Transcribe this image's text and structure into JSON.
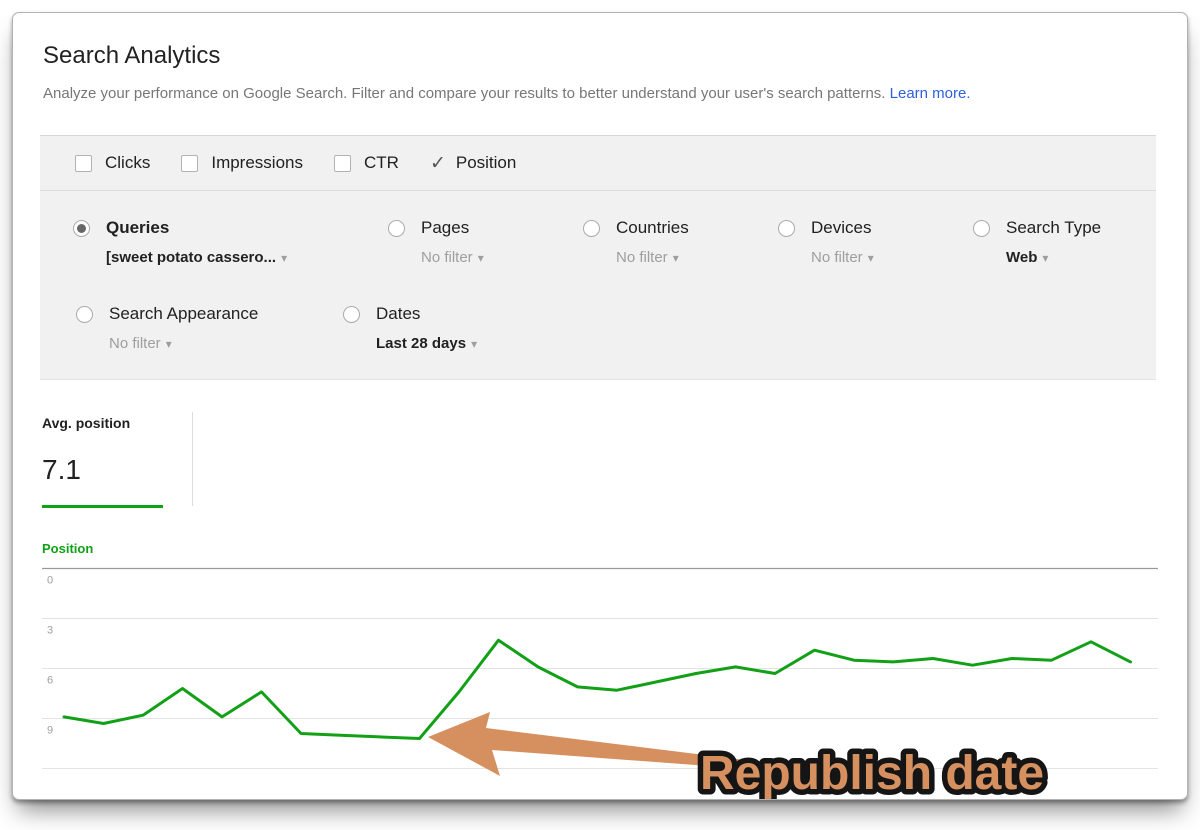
{
  "header": {
    "title": "Search Analytics",
    "subtitle": "Analyze your performance on Google Search. Filter and compare your results to better understand your user's search patterns.",
    "learn_more": "Learn more."
  },
  "metrics_bar": {
    "check_glyph": "✓",
    "items": [
      {
        "label": "Clicks",
        "checked": false
      },
      {
        "label": "Impressions",
        "checked": false
      },
      {
        "label": "CTR",
        "checked": false
      },
      {
        "label": "Position",
        "checked": true
      }
    ]
  },
  "dimensions": {
    "caret_glyph": "▾",
    "row1": [
      {
        "label": "Queries",
        "selected": true,
        "filter": "[sweet potato cassero...",
        "filter_bold": true
      },
      {
        "label": "Pages",
        "selected": false,
        "filter": "No filter",
        "filter_bold": false
      },
      {
        "label": "Countries",
        "selected": false,
        "filter": "No filter",
        "filter_bold": false
      },
      {
        "label": "Devices",
        "selected": false,
        "filter": "No filter",
        "filter_bold": false
      },
      {
        "label": "Search Type",
        "selected": false,
        "filter": "Web",
        "filter_bold": true
      }
    ],
    "row2": [
      {
        "label": "Search Appearance",
        "selected": false,
        "filter": "No filter",
        "filter_bold": false
      },
      {
        "label": "Dates",
        "selected": false,
        "filter": "Last 28 days",
        "filter_bold": true
      }
    ]
  },
  "summary": {
    "label": "Avg. position",
    "value": "7.1"
  },
  "chart_data": {
    "type": "line",
    "title": "Position",
    "ylabel": "Position",
    "y_axis_inverted": true,
    "ylim": [
      0,
      12
    ],
    "yticks_labeled": [
      0,
      3,
      6,
      9
    ],
    "gridlines": [
      0,
      3,
      6,
      9,
      12
    ],
    "x_description": "Last 28 days (daily points)",
    "legend_position": "none",
    "grid": true,
    "line_color": "#12a016",
    "series": [
      {
        "name": "Position",
        "values": [
          8.9,
          9.3,
          8.8,
          7.2,
          8.9,
          7.4,
          9.9,
          10.0,
          10.1,
          10.2,
          7.4,
          4.3,
          5.9,
          7.1,
          7.3,
          6.8,
          6.3,
          5.9,
          6.3,
          4.9,
          5.5,
          5.6,
          5.4,
          5.8,
          5.4,
          5.5,
          4.4,
          5.6
        ]
      }
    ]
  },
  "annotation": {
    "text": "Republish date",
    "color": "#d6905f",
    "outline": "#151515"
  },
  "colors": {
    "accent_green": "#12a016",
    "link_blue": "#2d5fe0",
    "annotation_orange": "#d6905f",
    "panel_gray": "#f1f1f1"
  }
}
